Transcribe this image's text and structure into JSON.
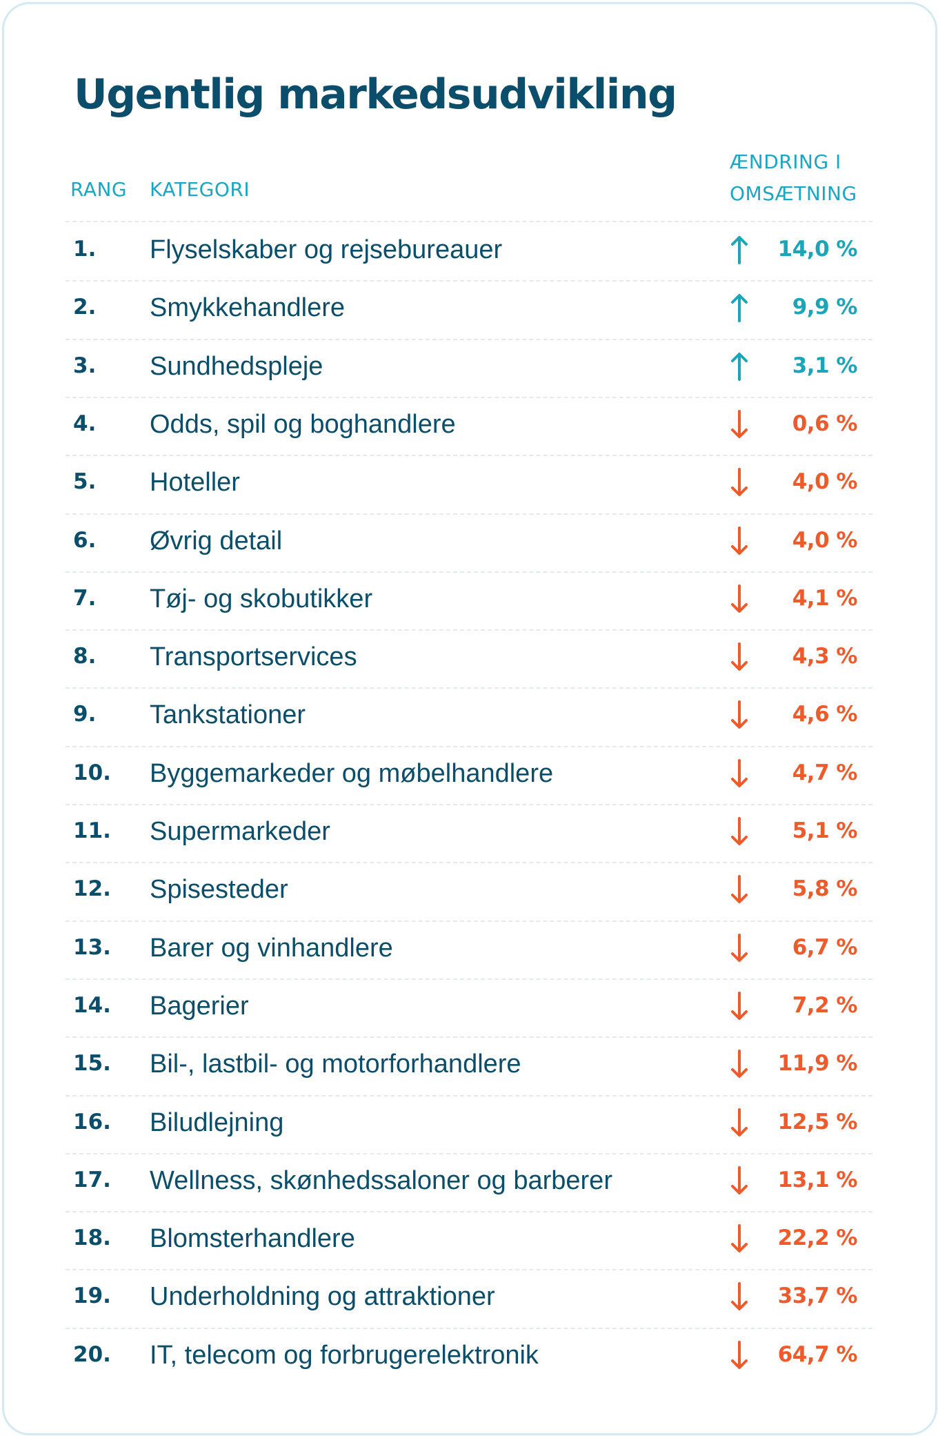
{
  "title": "Ugentlig markedsudvikling",
  "headers": {
    "rank": "RANG",
    "category": "KATEGORI",
    "change_line1": "ÆNDRING I",
    "change_line2": "OMSÆTNING"
  },
  "colors": {
    "title": "#0b4e6b",
    "header": "#1aa6c4",
    "up": "#1aa6b8",
    "down": "#ef5a2b",
    "text": "#0b4e6b"
  },
  "rows": [
    {
      "rank": "1.",
      "category": "Flyselskaber og rejsebureauer",
      "direction": "up",
      "change": "14,0 %"
    },
    {
      "rank": "2.",
      "category": "Smykkehandlere",
      "direction": "up",
      "change": "9,9 %"
    },
    {
      "rank": "3.",
      "category": "Sundhedspleje",
      "direction": "up",
      "change": "3,1 %"
    },
    {
      "rank": "4.",
      "category": "Odds, spil og boghandlere",
      "direction": "down",
      "change": "0,6 %"
    },
    {
      "rank": "5.",
      "category": "Hoteller",
      "direction": "down",
      "change": "4,0 %"
    },
    {
      "rank": "6.",
      "category": "Øvrig detail",
      "direction": "down",
      "change": "4,0 %"
    },
    {
      "rank": "7.",
      "category": "Tøj- og skobutikker",
      "direction": "down",
      "change": "4,1 %"
    },
    {
      "rank": "8.",
      "category": "Transportservices",
      "direction": "down",
      "change": "4,3 %"
    },
    {
      "rank": "9.",
      "category": "Tankstationer",
      "direction": "down",
      "change": "4,6 %"
    },
    {
      "rank": "10.",
      "category": "Byggemarkeder og møbelhandlere",
      "direction": "down",
      "change": "4,7 %"
    },
    {
      "rank": "11.",
      "category": "Supermarkeder",
      "direction": "down",
      "change": "5,1 %"
    },
    {
      "rank": "12.",
      "category": "Spisesteder",
      "direction": "down",
      "change": "5,8 %"
    },
    {
      "rank": "13.",
      "category": "Barer og vinhandlere",
      "direction": "down",
      "change": "6,7 %"
    },
    {
      "rank": "14.",
      "category": "Bagerier",
      "direction": "down",
      "change": "7,2 %"
    },
    {
      "rank": "15.",
      "category": "Bil-, lastbil- og motorforhandlere",
      "direction": "down",
      "change": "11,9 %"
    },
    {
      "rank": "16.",
      "category": "Biludlejning",
      "direction": "down",
      "change": "12,5 %"
    },
    {
      "rank": "17.",
      "category": "Wellness, skønhedssaloner og barberer",
      "direction": "down",
      "change": "13,1 %"
    },
    {
      "rank": "18.",
      "category": "Blomsterhandlere",
      "direction": "down",
      "change": "22,2 %"
    },
    {
      "rank": "19.",
      "category": "Underholdning og attraktioner",
      "direction": "down",
      "change": "33,7 %"
    },
    {
      "rank": "20.",
      "category": "IT, telecom og forbrugerelektronik",
      "direction": "down",
      "change": "64,7 %"
    }
  ]
}
